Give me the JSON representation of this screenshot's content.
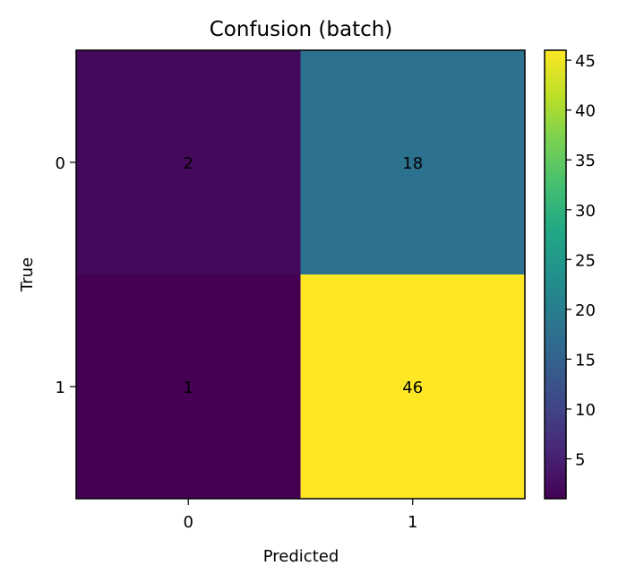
{
  "chart_data": {
    "type": "heatmap",
    "title": "Confusion (batch)",
    "xlabel": "Predicted",
    "ylabel": "True",
    "x_categories": [
      "0",
      "1"
    ],
    "y_categories": [
      "0",
      "1"
    ],
    "values": [
      [
        2,
        18
      ],
      [
        1,
        46
      ]
    ],
    "colormap": "viridis",
    "colorbar": {
      "min": 1,
      "max": 46,
      "ticks": [
        5,
        10,
        15,
        20,
        25,
        30,
        35,
        40,
        45
      ],
      "tick_labels": [
        "5",
        "10",
        "15",
        "20",
        "25",
        "30",
        "35",
        "40",
        "45"
      ]
    },
    "grid": false
  }
}
